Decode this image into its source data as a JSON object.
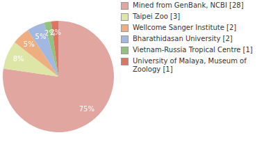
{
  "chart_data": {
    "type": "pie",
    "categories": [
      "Mined from GenBank, NCBI [28]",
      "Taipei Zoo [3]",
      "Wellcome Sanger Institute [2]",
      "Bharathidasan University [2]",
      "Vietnam-Russia Tropical Centre [1]",
      "University of Malaya, Museum of Zoology [1]"
    ],
    "values": [
      75,
      8,
      5,
      5,
      2,
      2
    ],
    "value_labels": [
      "75%",
      "8%",
      "5%",
      "5%",
      "2%",
      "2%"
    ],
    "colors": [
      "#e0a69f",
      "#dde6a6",
      "#efae80",
      "#a2b8e0",
      "#93c27f",
      "#e07462"
    ],
    "data_labels": true,
    "legend": "right"
  }
}
